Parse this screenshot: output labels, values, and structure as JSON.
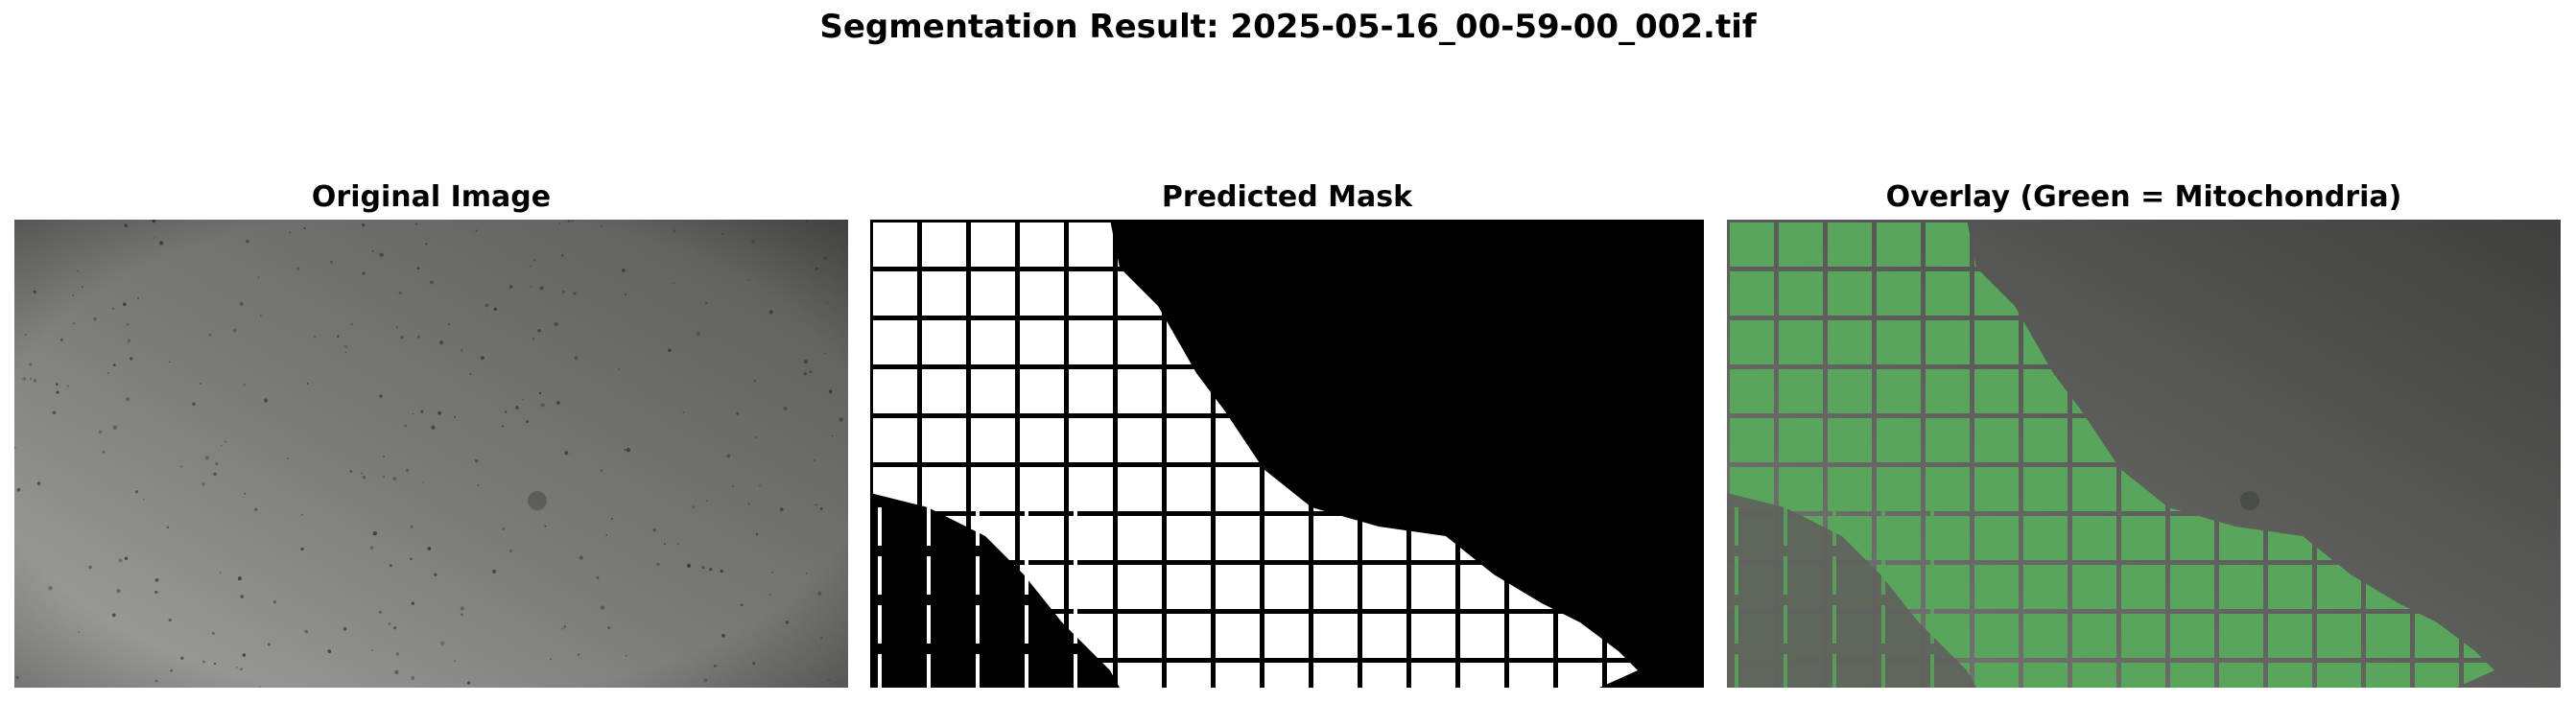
{
  "figure": {
    "title": "Segmentation Result: 2025-05-16_00-59-00_002.tif"
  },
  "panels": [
    {
      "title": "Original Image",
      "image": "grayscale microscope photograph, light gray with gradient and scattered dark specks"
    },
    {
      "title": "Predicted Mask",
      "image": "binary mask, white grid squares on black background, diagonal boundary"
    },
    {
      "title": "Overlay (Green = Mitochondria)",
      "image": "gray photograph with green overlay on masked grid region"
    }
  ],
  "colors": {
    "overlay_green": "#5aa55c",
    "mask_white": "#ffffff",
    "mask_black": "#000000",
    "gray_light": "#9a9b99",
    "gray_dark": "#4e4f4c"
  }
}
